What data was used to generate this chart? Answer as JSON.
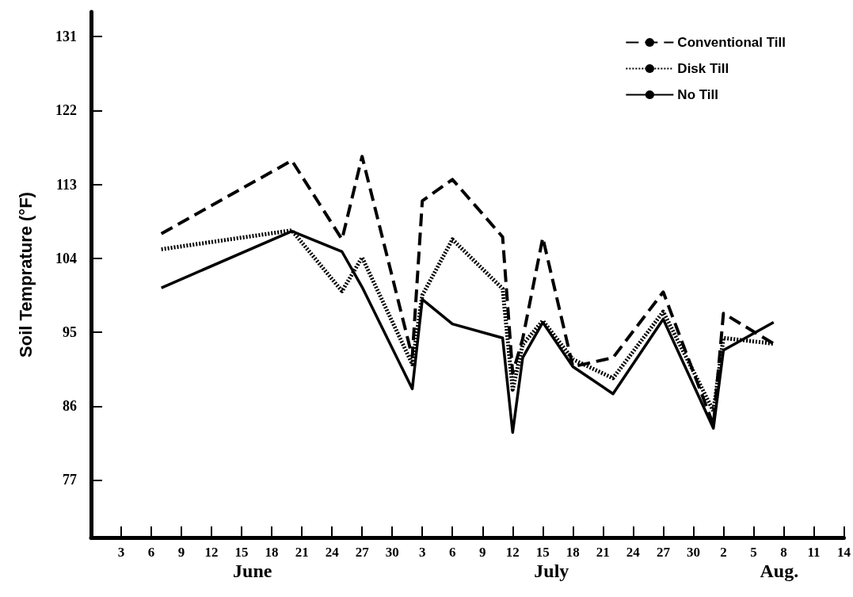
{
  "chart_data": {
    "type": "line",
    "ylabel": "Soil Temprature (°F)",
    "x": [
      "--06-07",
      "--06-20",
      "--06-25",
      "--06-27",
      "--07-02",
      "--07-03",
      "--07-06",
      "--07-11",
      "--07-12",
      "--07-13",
      "--07-15",
      "--07-18",
      "--07-22",
      "--07-27",
      "--08-01",
      "--08-02",
      "--08-07"
    ],
    "series": [
      {
        "name": "Conventional Till",
        "color": "#000000",
        "line_style": "dashed",
        "values": [
          107.0,
          115.9,
          106.3,
          116.4,
          92.0,
          111.0,
          113.6,
          106.6,
          90.0,
          94.2,
          106.5,
          90.8,
          91.9,
          99.9,
          83.7,
          97.3,
          93.6
        ]
      },
      {
        "name": "Disk Till",
        "color": "#000000",
        "line_style": "dotted",
        "values": [
          105.1,
          107.4,
          100.0,
          104.1,
          91.1,
          99.5,
          106.3,
          100.3,
          88.0,
          93.5,
          96.4,
          91.7,
          89.4,
          97.5,
          85.4,
          94.3,
          93.6
        ]
      },
      {
        "name": "No Till",
        "color": "#000000",
        "line_style": "solid",
        "values": [
          100.4,
          107.3,
          104.8,
          100.5,
          88.1,
          99.0,
          96.0,
          94.3,
          82.8,
          91.9,
          96.2,
          90.8,
          87.5,
          96.6,
          83.3,
          92.8,
          96.2
        ]
      }
    ],
    "xlim": [
      "--05-31",
      "--08-14"
    ],
    "xticks": [
      {
        "value": "--06-03",
        "label": "3"
      },
      {
        "value": "--06-06",
        "label": "6"
      },
      {
        "value": "--06-09",
        "label": "9"
      },
      {
        "value": "--06-12",
        "label": "12"
      },
      {
        "value": "--06-15",
        "label": "15"
      },
      {
        "value": "--06-18",
        "label": "18"
      },
      {
        "value": "--06-21",
        "label": "21"
      },
      {
        "value": "--06-24",
        "label": "24"
      },
      {
        "value": "--06-27",
        "label": "27"
      },
      {
        "value": "--06-30",
        "label": "30"
      },
      {
        "value": "--07-03",
        "label": "3"
      },
      {
        "value": "--07-06",
        "label": "6"
      },
      {
        "value": "--07-09",
        "label": "9"
      },
      {
        "value": "--07-12",
        "label": "12"
      },
      {
        "value": "--07-15",
        "label": "15"
      },
      {
        "value": "--07-18",
        "label": "18"
      },
      {
        "value": "--07-21",
        "label": "21"
      },
      {
        "value": "--07-24",
        "label": "24"
      },
      {
        "value": "--07-27",
        "label": "27"
      },
      {
        "value": "--07-30",
        "label": "30"
      },
      {
        "value": "--08-02",
        "label": "2"
      },
      {
        "value": "--08-05",
        "label": "5"
      },
      {
        "value": "--08-08",
        "label": "8"
      },
      {
        "value": "--08-11",
        "label": "11"
      },
      {
        "value": "--08-14",
        "label": "14"
      }
    ],
    "ylim": [
      70,
      134
    ],
    "yticks": [
      77,
      86,
      95,
      104,
      113,
      122,
      131
    ],
    "annotations": [
      "June",
      "July",
      "Aug."
    ],
    "grid": false,
    "legend": "top right",
    "marker": "none"
  }
}
